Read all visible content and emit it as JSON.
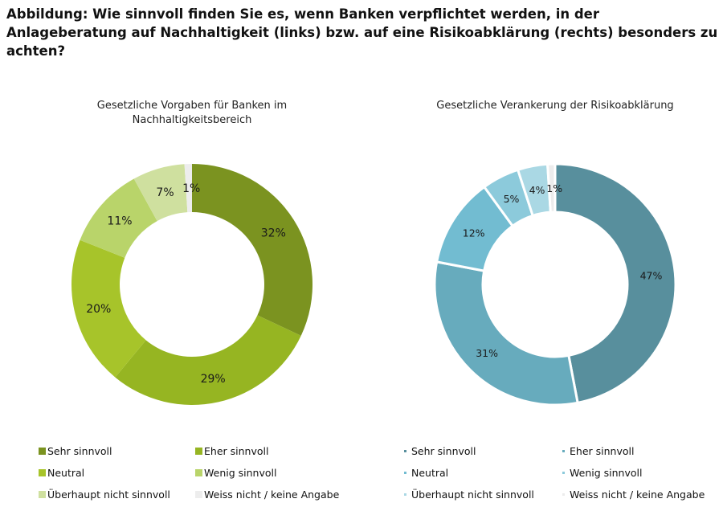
{
  "title": "Abbildung: Wie sinnvoll finden Sie es, wenn Banken verpflichtet werden, in der Anlageberatung auf Nachhaltigkeit (links) bzw. auf eine Risikoabklärung (rechts) besonders zu achten?",
  "chart_data": [
    {
      "type": "pie",
      "variant": "donut",
      "title": "Gesetzliche Vorgaben für Banken im Nachhaltigkeitsbereich",
      "categories": [
        "Sehr sinnvoll",
        "Eher sinnvoll",
        "Neutral",
        "Wenig sinnvoll",
        "Überhaupt nicht sinnvoll",
        "Weiss nicht / keine Angabe"
      ],
      "values": [
        32,
        29,
        20,
        11,
        7,
        1
      ],
      "labels": [
        "32%",
        "29%",
        "20%",
        "11%",
        "7%",
        "1%"
      ],
      "colors": [
        "#7b9320",
        "#96b522",
        "#a7c42a",
        "#b9d46a",
        "#cfe09f",
        "#ededed"
      ],
      "legend": "bottom"
    },
    {
      "type": "pie",
      "variant": "donut",
      "title": "Gesetzliche Verankerung der Risikoabklärung",
      "categories": [
        "Sehr sinnvoll",
        "Eher sinnvoll",
        "Neutral",
        "Wenig sinnvoll",
        "Überhaupt nicht sinnvoll",
        "Weiss nicht / keine Angabe"
      ],
      "values": [
        47,
        31,
        12,
        5,
        4,
        1
      ],
      "labels": [
        "47%",
        "31%",
        "12%",
        "5%",
        "4%",
        "1%"
      ],
      "colors": [
        "#588f9d",
        "#67abbd",
        "#72bcd1",
        "#8ccadb",
        "#aad8e4",
        "#ececec"
      ],
      "legend": "bottom"
    }
  ]
}
